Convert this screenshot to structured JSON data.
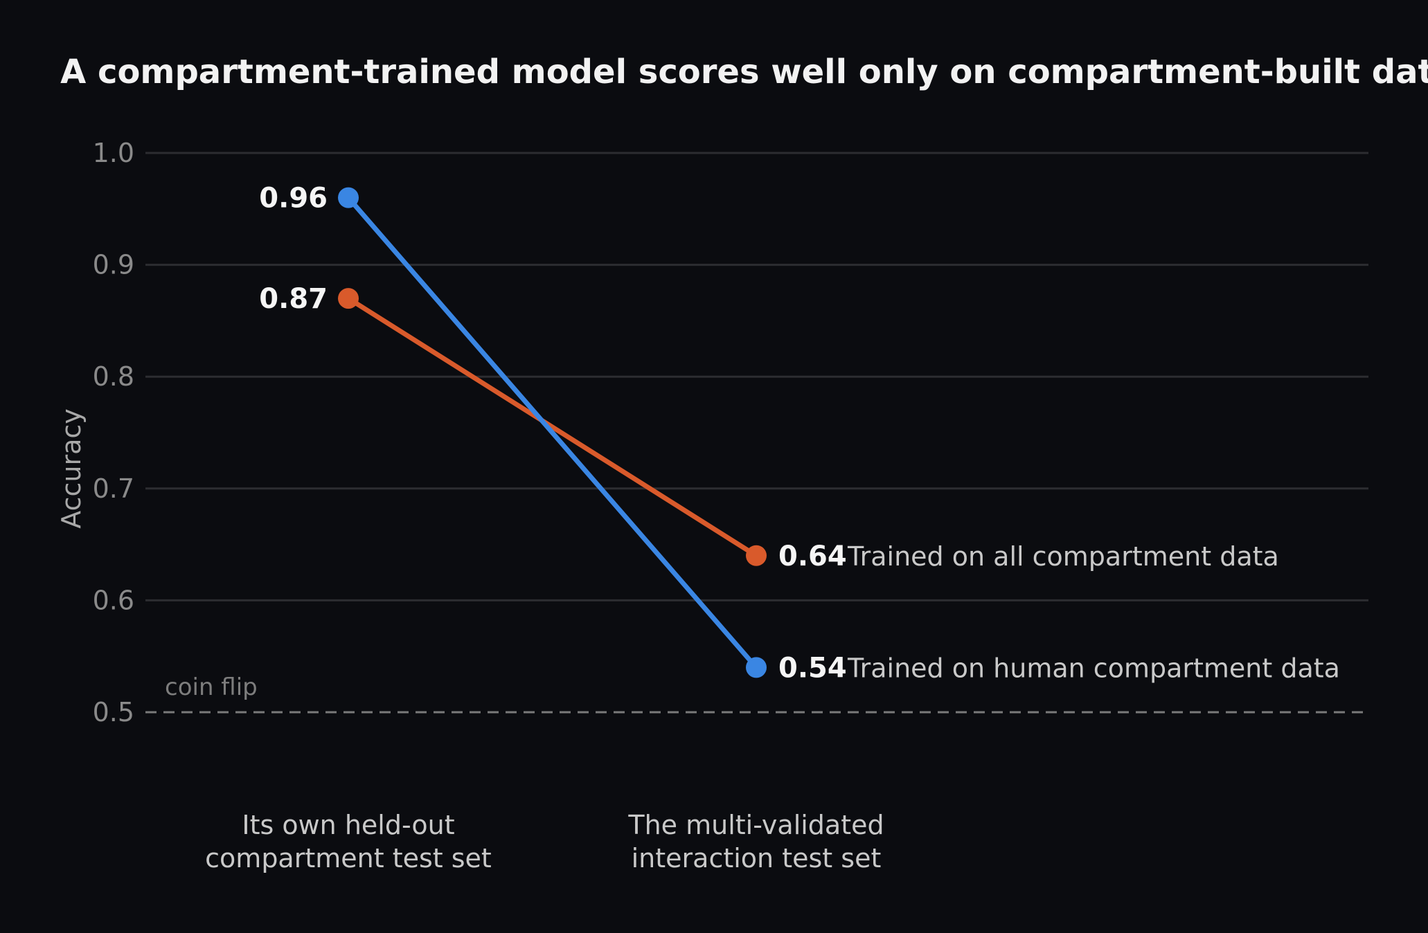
{
  "chart_data": {
    "type": "line",
    "title": "A compartment-trained model scores well only on compartment-built data",
    "ylabel": "Accuracy",
    "xlabel": "",
    "ylim": [
      0.5,
      1.0
    ],
    "yticks": [
      "0.5",
      "0.6",
      "0.7",
      "0.8",
      "0.9",
      "1.0"
    ],
    "grid": true,
    "categories": [
      [
        "Its own held-out",
        "compartment test set"
      ],
      [
        "The multi-validated",
        "interaction test set"
      ]
    ],
    "series": [
      {
        "name": "Trained on all compartment data",
        "color": "#d95a2b",
        "values": [
          0.87,
          0.64
        ],
        "value_labels": [
          "0.87",
          "0.64"
        ]
      },
      {
        "name": "Trained on human compartment data",
        "color": "#3a86e3",
        "values": [
          0.96,
          0.54
        ],
        "value_labels": [
          "0.96",
          "0.54"
        ]
      }
    ],
    "reference_line": {
      "value": 0.5,
      "label": "coin flip",
      "style": "dashed"
    }
  }
}
